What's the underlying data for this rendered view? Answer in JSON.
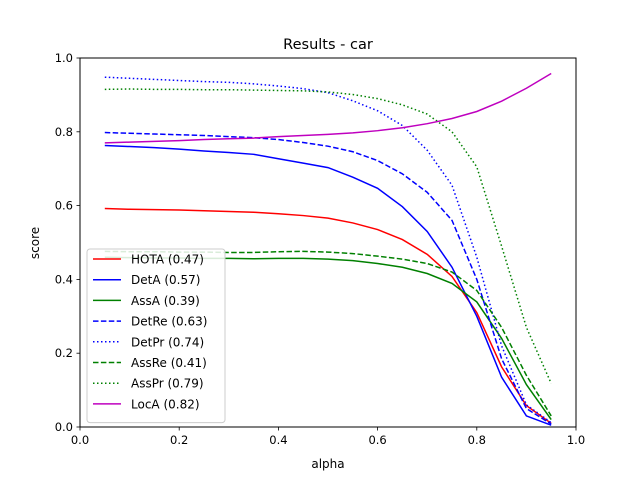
{
  "chart_data": {
    "type": "line",
    "title": "Results - car",
    "xlabel": "alpha",
    "ylabel": "score",
    "xlim": [
      0.0,
      1.0
    ],
    "ylim": [
      0.0,
      1.0
    ],
    "xticks": [
      "0.0",
      "0.2",
      "0.4",
      "0.6",
      "0.8",
      "1.0"
    ],
    "yticks": [
      "0.0",
      "0.2",
      "0.4",
      "0.6",
      "0.8",
      "1.0"
    ],
    "grid": false,
    "legend_position": "lower-left",
    "x": [
      0.05,
      0.1,
      0.15,
      0.2,
      0.25,
      0.3,
      0.35,
      0.4,
      0.45,
      0.5,
      0.55,
      0.6,
      0.65,
      0.7,
      0.75,
      0.8,
      0.85,
      0.9,
      0.95
    ],
    "series": [
      {
        "name": "HOTA (0.47)",
        "color": "#ff0000",
        "dash": "solid",
        "values": [
          0.592,
          0.59,
          0.589,
          0.588,
          0.586,
          0.584,
          0.582,
          0.578,
          0.573,
          0.566,
          0.553,
          0.535,
          0.508,
          0.468,
          0.408,
          0.31,
          0.163,
          0.058,
          0.01
        ]
      },
      {
        "name": "DetA (0.57)",
        "color": "#0000ff",
        "dash": "solid",
        "values": [
          0.763,
          0.76,
          0.757,
          0.753,
          0.748,
          0.744,
          0.739,
          0.727,
          0.715,
          0.703,
          0.677,
          0.647,
          0.597,
          0.53,
          0.433,
          0.3,
          0.135,
          0.03,
          0.005
        ]
      },
      {
        "name": "AssA (0.39)",
        "color": "#008000",
        "dash": "solid",
        "values": [
          0.46,
          0.459,
          0.458,
          0.458,
          0.457,
          0.457,
          0.456,
          0.457,
          0.457,
          0.455,
          0.451,
          0.443,
          0.433,
          0.416,
          0.389,
          0.339,
          0.24,
          0.115,
          0.02
        ]
      },
      {
        "name": "DetRe (0.63)",
        "color": "#0000ff",
        "dash": "dashed",
        "values": [
          0.798,
          0.796,
          0.794,
          0.792,
          0.79,
          0.787,
          0.784,
          0.779,
          0.771,
          0.761,
          0.746,
          0.722,
          0.686,
          0.636,
          0.56,
          0.4,
          0.185,
          0.05,
          0.008
        ]
      },
      {
        "name": "DetPr (0.74)",
        "color": "#0000ff",
        "dash": "dotted",
        "values": [
          0.948,
          0.945,
          0.942,
          0.939,
          0.936,
          0.934,
          0.93,
          0.924,
          0.917,
          0.906,
          0.884,
          0.857,
          0.817,
          0.75,
          0.655,
          0.46,
          0.22,
          0.06,
          0.012
        ]
      },
      {
        "name": "AssRe (0.41)",
        "color": "#008000",
        "dash": "dashed",
        "values": [
          0.476,
          0.475,
          0.475,
          0.474,
          0.474,
          0.473,
          0.473,
          0.475,
          0.476,
          0.474,
          0.47,
          0.463,
          0.455,
          0.443,
          0.42,
          0.37,
          0.27,
          0.14,
          0.03
        ]
      },
      {
        "name": "AssPr (0.79)",
        "color": "#008000",
        "dash": "dotted",
        "values": [
          0.915,
          0.916,
          0.915,
          0.915,
          0.914,
          0.914,
          0.913,
          0.912,
          0.911,
          0.908,
          0.901,
          0.89,
          0.873,
          0.848,
          0.8,
          0.705,
          0.49,
          0.27,
          0.118
        ]
      },
      {
        "name": "LocA (0.82)",
        "color": "#bf00bf",
        "dash": "solid",
        "values": [
          0.77,
          0.772,
          0.774,
          0.776,
          0.779,
          0.781,
          0.783,
          0.787,
          0.79,
          0.793,
          0.797,
          0.803,
          0.811,
          0.822,
          0.836,
          0.855,
          0.883,
          0.918,
          0.958
        ]
      }
    ]
  }
}
